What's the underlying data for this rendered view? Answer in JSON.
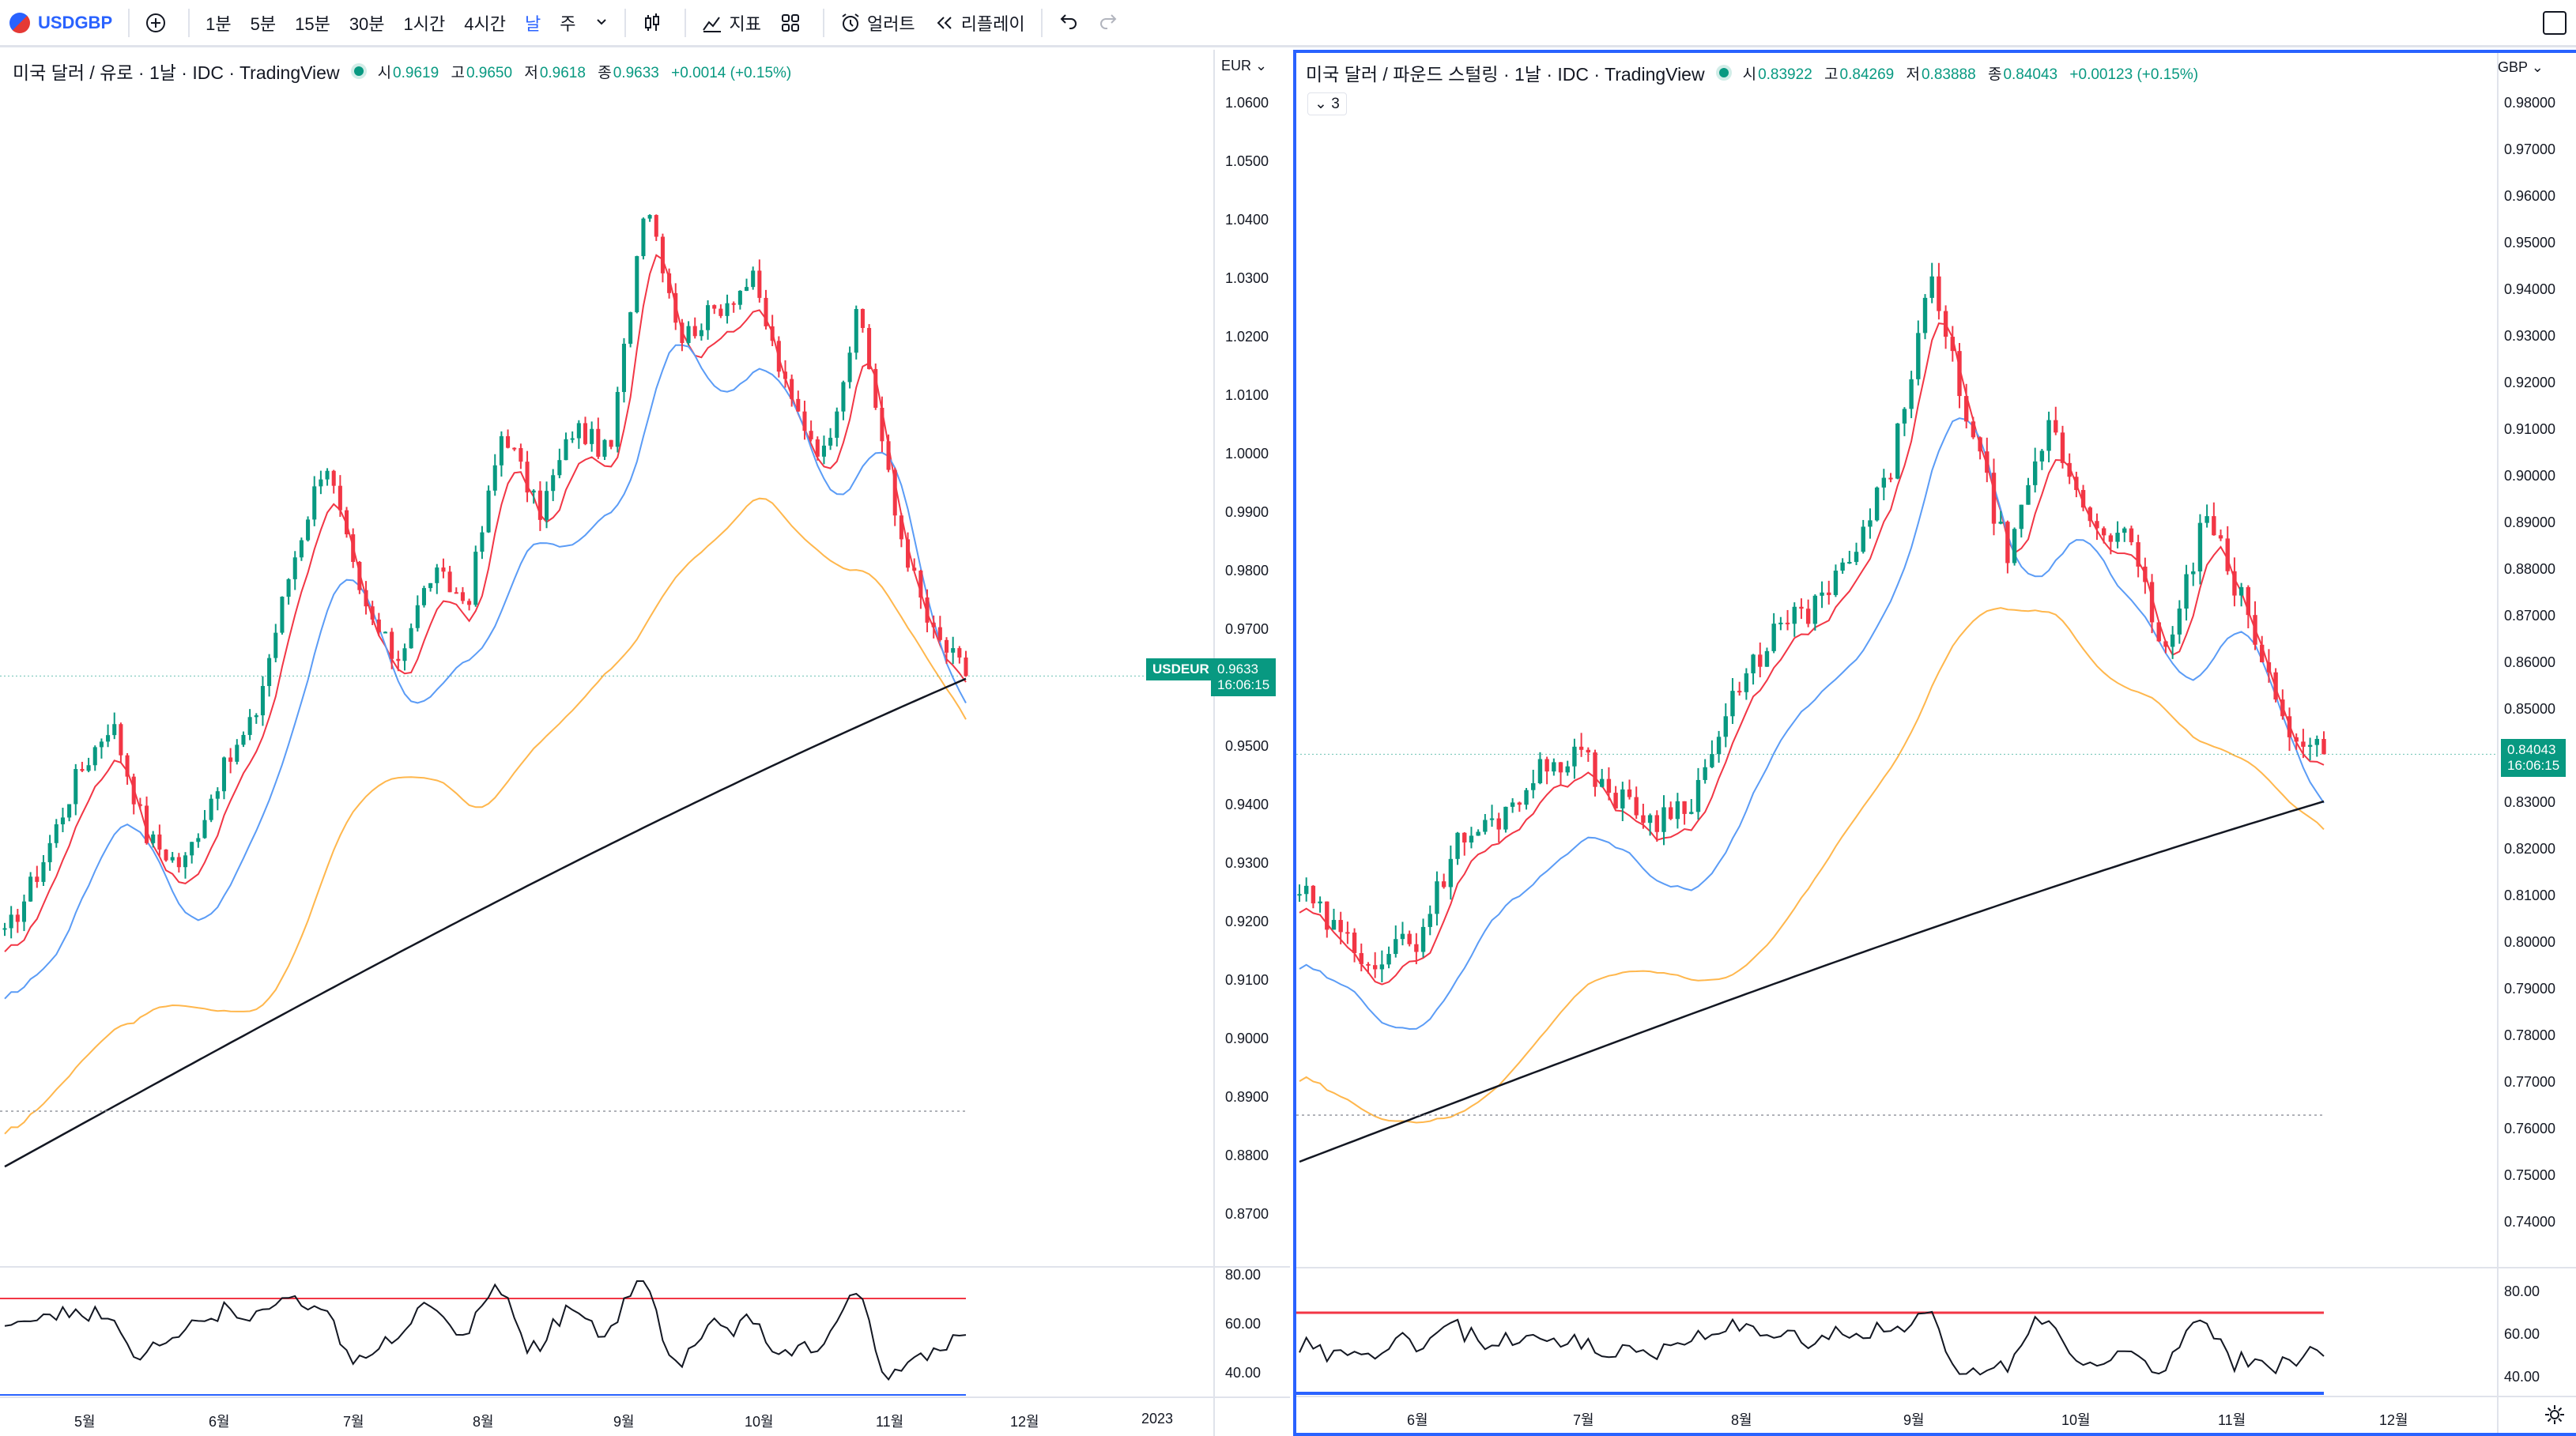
{
  "toolbar": {
    "symbol": "USDGBP",
    "intervals": [
      "1분",
      "5분",
      "15분",
      "30분",
      "1시간",
      "4시간",
      "날",
      "주"
    ],
    "active_interval": "날",
    "indicators_label": "지표",
    "alerts_label": "얼러트",
    "replay_label": "리플레이"
  },
  "left": {
    "title": "미국 달러 / 유로 · 1날 · IDC · TradingView",
    "ohlc": {
      "o_label": "시",
      "o": "0.9619",
      "h_label": "고",
      "h": "0.9650",
      "l_label": "저",
      "l": "0.9618",
      "c_label": "종",
      "c": "0.9633",
      "chg": "+0.0014 (+0.15%)"
    },
    "currency": "EUR",
    "price_ticks": [
      "1.0600",
      "1.0500",
      "1.0400",
      "1.0300",
      "1.0200",
      "1.0100",
      "1.0000",
      "0.9900",
      "0.9800",
      "0.9700",
      "0.9600",
      "0.9500",
      "0.9400",
      "0.9300",
      "0.9200",
      "0.9100",
      "0.9000",
      "0.8900",
      "0.8800",
      "0.8700"
    ],
    "symbol_tag": "USDEUR",
    "last_price": "0.9633",
    "countdown": "16:06:15",
    "rsi_ticks": [
      "80.00",
      "60.00",
      "40.00"
    ],
    "time_labels": [
      "5월",
      "6월",
      "7월",
      "8월",
      "9월",
      "10월",
      "11월",
      "12월",
      "2023"
    ]
  },
  "right": {
    "title": "미국 달러 / 파운드 스털링 · 1날 · IDC · TradingView",
    "ohlc": {
      "o_label": "시",
      "o": "0.83922",
      "h_label": "고",
      "h": "0.84269",
      "l_label": "저",
      "l": "0.83888",
      "c_label": "종",
      "c": "0.84043",
      "chg": "+0.00123 (+0.15%)"
    },
    "collapse_badge": "3",
    "currency": "GBP",
    "price_ticks": [
      "0.98000",
      "0.97000",
      "0.96000",
      "0.95000",
      "0.94000",
      "0.93000",
      "0.92000",
      "0.91000",
      "0.90000",
      "0.89000",
      "0.88000",
      "0.87000",
      "0.86000",
      "0.85000",
      "0.84000",
      "0.83000",
      "0.82000",
      "0.81000",
      "0.80000",
      "0.79000",
      "0.78000",
      "0.77000",
      "0.76000",
      "0.75000",
      "0.74000"
    ],
    "last_price": "0.84043",
    "countdown": "16:06:15",
    "rsi_ticks": [
      "80.00",
      "60.00",
      "40.00"
    ],
    "time_labels": [
      "6월",
      "7월",
      "8월",
      "9월",
      "10월",
      "11월",
      "12월"
    ]
  },
  "colors": {
    "up": "#089981",
    "down": "#f23645",
    "ma_short": "#f23645",
    "ma_mid": "#5b9cf6",
    "ma_long": "#ffb74d",
    "ma_200": "#131722",
    "accent": "#2962ff"
  }
}
